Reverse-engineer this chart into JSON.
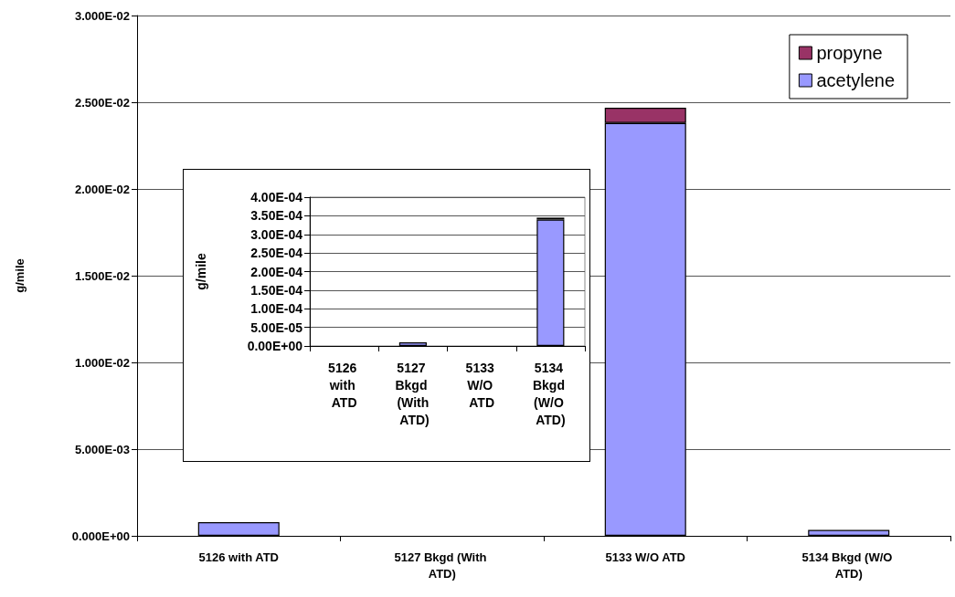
{
  "chart_data": [
    {
      "type": "bar",
      "ylabel": "g/mile",
      "categories": [
        "5126 with ATD",
        "5127 Bkgd (With ATD)",
        "5133 W/O ATD",
        "5134 Bkgd (W/O ATD)"
      ],
      "stacked": true,
      "series": [
        {
          "name": "acetylene",
          "color": "#9999ff",
          "values": [
            0.00079,
            null,
            0.0238,
            0.00034
          ]
        },
        {
          "name": "propyne",
          "color": "#993366",
          "values": [
            null,
            null,
            0.00088,
            null
          ]
        }
      ],
      "ylim": [
        0,
        0.03
      ],
      "yticks": [
        {
          "value": 0,
          "label": "0.000E+00"
        },
        {
          "value": 0.005,
          "label": "5.000E-03"
        },
        {
          "value": 0.01,
          "label": "1.000E-02"
        },
        {
          "value": 0.015,
          "label": "1.500E-02"
        },
        {
          "value": 0.02,
          "label": "2.000E-02"
        },
        {
          "value": 0.025,
          "label": "2.500E-02"
        },
        {
          "value": 0.03,
          "label": "3.000E-02"
        }
      ],
      "grid": "y",
      "legend": "top right"
    },
    {
      "type": "bar",
      "ylabel": "g/mile",
      "categories": [
        "5126 with ATD",
        "5127 Bkgd (With ATD)",
        "5133 W/O ATD",
        "5134 Bkgd (W/O ATD)"
      ],
      "stacked": true,
      "series": [
        {
          "color": "#9999ff",
          "values": [
            null,
            1e-05,
            null,
            0.00034
          ]
        },
        {
          "color": "#993366",
          "values": [
            null,
            null,
            null,
            5e-06
          ]
        }
      ],
      "ylim": [
        0,
        0.0004
      ],
      "yticks": [
        {
          "value": 0,
          "label": "0.00E+00"
        },
        {
          "value": 5e-05,
          "label": "5.00E-05"
        },
        {
          "value": 0.0001,
          "label": "1.00E-04"
        },
        {
          "value": 0.00015,
          "label": "1.50E-04"
        },
        {
          "value": 0.0002,
          "label": "2.00E-04"
        },
        {
          "value": 0.00025,
          "label": "2.50E-04"
        },
        {
          "value": 0.0003,
          "label": "3.00E-04"
        },
        {
          "value": 0.00035,
          "label": "3.50E-04"
        },
        {
          "value": 0.0004,
          "label": "4.00E-04"
        }
      ],
      "grid": "y",
      "legend": false
    }
  ]
}
